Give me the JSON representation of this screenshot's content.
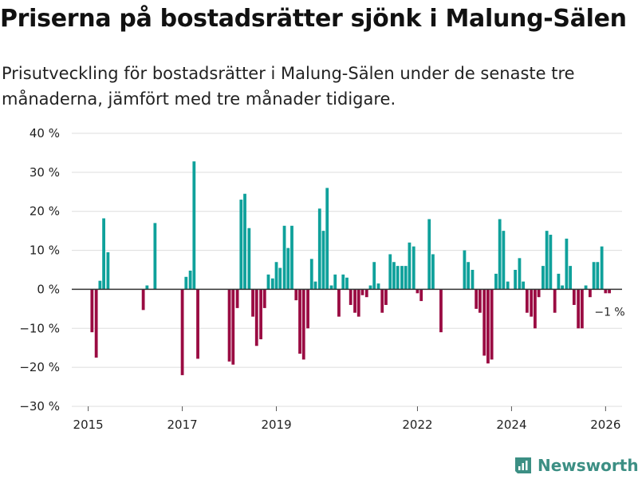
{
  "title": "Priserna på bostadsrätter sjönk i Malung-Sälen",
  "subtitle": "Prisutveckling för bostadsrätter i Malung-Sälen under de senaste tre månaderna, jämfört med tre månader tidigare.",
  "brand": "Newsworthy",
  "colors": {
    "positive": "#0fa19b",
    "negative": "#9a0b42",
    "grid": "#dddddd",
    "brand": "#3c8f84"
  },
  "chart_data": {
    "type": "bar",
    "title": "Priserna på bostadsrätter sjönk i Malung-Sälen",
    "xlabel": "",
    "ylabel": "",
    "ylim": [
      -30,
      40
    ],
    "yticks": [
      40,
      30,
      20,
      10,
      0,
      -10,
      -20,
      -30
    ],
    "ytick_labels": [
      "40 %",
      "30 %",
      "20 %",
      "10 %",
      "0 %",
      "−10 %",
      "−20 %",
      "−30 %"
    ],
    "xlim": [
      2014.65,
      2026.35
    ],
    "xticks": [
      2015,
      2017,
      2019,
      2022,
      2024,
      2026
    ],
    "xtick_labels": [
      "2015",
      "2017",
      "2019",
      "2022",
      "2024",
      "2026"
    ],
    "annotation": {
      "text": "−1 %",
      "x": 2026.0,
      "y": -1
    },
    "points": [
      {
        "x": 2015.08,
        "y": -11
      },
      {
        "x": 2015.17,
        "y": -17.5
      },
      {
        "x": 2015.25,
        "y": 2.2
      },
      {
        "x": 2015.33,
        "y": 18.2
      },
      {
        "x": 2015.42,
        "y": 9.5
      },
      {
        "x": 2016.17,
        "y": -5.3
      },
      {
        "x": 2016.25,
        "y": 1
      },
      {
        "x": 2016.42,
        "y": 17
      },
      {
        "x": 2017.0,
        "y": -22
      },
      {
        "x": 2017.08,
        "y": 3.2
      },
      {
        "x": 2017.17,
        "y": 4.8
      },
      {
        "x": 2017.25,
        "y": 32.8
      },
      {
        "x": 2017.33,
        "y": -17.8
      },
      {
        "x": 2018.0,
        "y": -18.5
      },
      {
        "x": 2018.08,
        "y": -19.3
      },
      {
        "x": 2018.17,
        "y": -4.8
      },
      {
        "x": 2018.25,
        "y": 23
      },
      {
        "x": 2018.33,
        "y": 24.5
      },
      {
        "x": 2018.42,
        "y": 15.7
      },
      {
        "x": 2018.5,
        "y": -7
      },
      {
        "x": 2018.58,
        "y": -14.5
      },
      {
        "x": 2018.67,
        "y": -12.8
      },
      {
        "x": 2018.75,
        "y": -4.8
      },
      {
        "x": 2018.83,
        "y": 3.8
      },
      {
        "x": 2018.92,
        "y": 2.8
      },
      {
        "x": 2019.0,
        "y": 7
      },
      {
        "x": 2019.08,
        "y": 5.5
      },
      {
        "x": 2019.17,
        "y": 16.3
      },
      {
        "x": 2019.25,
        "y": 10.6
      },
      {
        "x": 2019.33,
        "y": 16.3
      },
      {
        "x": 2019.42,
        "y": -2.8
      },
      {
        "x": 2019.5,
        "y": -16.5
      },
      {
        "x": 2019.58,
        "y": -18
      },
      {
        "x": 2019.67,
        "y": -10
      },
      {
        "x": 2019.75,
        "y": 7.8
      },
      {
        "x": 2019.83,
        "y": 2
      },
      {
        "x": 2019.92,
        "y": 20.7
      },
      {
        "x": 2020.0,
        "y": 15
      },
      {
        "x": 2020.08,
        "y": 26
      },
      {
        "x": 2020.17,
        "y": 1
      },
      {
        "x": 2020.25,
        "y": 3.8
      },
      {
        "x": 2020.33,
        "y": -7
      },
      {
        "x": 2020.42,
        "y": 3.8
      },
      {
        "x": 2020.5,
        "y": 3
      },
      {
        "x": 2020.58,
        "y": -4
      },
      {
        "x": 2020.67,
        "y": -6
      },
      {
        "x": 2020.75,
        "y": -7
      },
      {
        "x": 2020.83,
        "y": -1.5
      },
      {
        "x": 2020.92,
        "y": -2
      },
      {
        "x": 2021.0,
        "y": 1
      },
      {
        "x": 2021.08,
        "y": 7
      },
      {
        "x": 2021.17,
        "y": 1.5
      },
      {
        "x": 2021.25,
        "y": -6
      },
      {
        "x": 2021.33,
        "y": -4
      },
      {
        "x": 2021.42,
        "y": 9
      },
      {
        "x": 2021.5,
        "y": 7
      },
      {
        "x": 2021.58,
        "y": 6
      },
      {
        "x": 2021.67,
        "y": 6
      },
      {
        "x": 2021.75,
        "y": 6
      },
      {
        "x": 2021.83,
        "y": 12
      },
      {
        "x": 2021.92,
        "y": 11
      },
      {
        "x": 2022.0,
        "y": -1
      },
      {
        "x": 2022.08,
        "y": -3
      },
      {
        "x": 2022.25,
        "y": 18
      },
      {
        "x": 2022.33,
        "y": 9
      },
      {
        "x": 2022.5,
        "y": -11
      },
      {
        "x": 2023.0,
        "y": 10
      },
      {
        "x": 2023.08,
        "y": 7
      },
      {
        "x": 2023.17,
        "y": 5
      },
      {
        "x": 2023.25,
        "y": -5
      },
      {
        "x": 2023.33,
        "y": -6
      },
      {
        "x": 2023.42,
        "y": -17
      },
      {
        "x": 2023.5,
        "y": -19
      },
      {
        "x": 2023.58,
        "y": -18
      },
      {
        "x": 2023.67,
        "y": 4
      },
      {
        "x": 2023.75,
        "y": 18
      },
      {
        "x": 2023.83,
        "y": 15
      },
      {
        "x": 2023.92,
        "y": 2
      },
      {
        "x": 2024.08,
        "y": 5
      },
      {
        "x": 2024.17,
        "y": 8
      },
      {
        "x": 2024.25,
        "y": 2
      },
      {
        "x": 2024.33,
        "y": -6
      },
      {
        "x": 2024.42,
        "y": -7
      },
      {
        "x": 2024.5,
        "y": -10
      },
      {
        "x": 2024.58,
        "y": -2
      },
      {
        "x": 2024.67,
        "y": 6
      },
      {
        "x": 2024.75,
        "y": 15
      },
      {
        "x": 2024.83,
        "y": 14
      },
      {
        "x": 2024.92,
        "y": -6
      },
      {
        "x": 2025.0,
        "y": 4
      },
      {
        "x": 2025.08,
        "y": 1
      },
      {
        "x": 2025.17,
        "y": 13
      },
      {
        "x": 2025.25,
        "y": 6
      },
      {
        "x": 2025.33,
        "y": -4
      },
      {
        "x": 2025.42,
        "y": -10
      },
      {
        "x": 2025.5,
        "y": -10
      },
      {
        "x": 2025.58,
        "y": 1
      },
      {
        "x": 2025.67,
        "y": -2
      },
      {
        "x": 2025.75,
        "y": 7
      },
      {
        "x": 2025.83,
        "y": 7
      },
      {
        "x": 2025.92,
        "y": 11
      },
      {
        "x": 2026.0,
        "y": -1
      },
      {
        "x": 2026.08,
        "y": -1
      }
    ]
  }
}
